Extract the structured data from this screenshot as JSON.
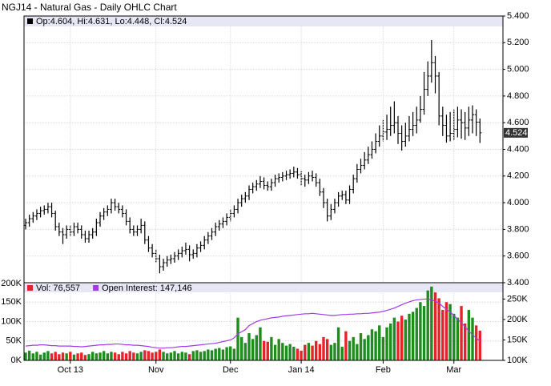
{
  "chart_data": [
    {
      "type": "ohlc",
      "title": "NGJ14 - Natural Gas - Daily OHLC Chart",
      "legend": "Op:4.604, Hi:4.631, Lo:4.448, Cl:4.524",
      "last_label": "4.524",
      "color": "#000000",
      "ylim": [
        3.4,
        5.4
      ],
      "yticks": [
        {
          "value": 3.4,
          "label": "3.400"
        },
        {
          "value": 3.6,
          "label": "3.600"
        },
        {
          "value": 3.8,
          "label": "3.800"
        },
        {
          "value": 4.0,
          "label": "4.000"
        },
        {
          "value": 4.2,
          "label": "4.200"
        },
        {
          "value": 4.4,
          "label": "4.400"
        },
        {
          "value": 4.6,
          "label": "4.600"
        },
        {
          "value": 4.8,
          "label": "4.800"
        },
        {
          "value": 5.0,
          "label": "5.000"
        },
        {
          "value": 5.2,
          "label": "5.200"
        },
        {
          "value": 5.4,
          "label": "5.400"
        }
      ],
      "grid": true,
      "open": [
        3.83,
        3.85,
        3.88,
        3.9,
        3.92,
        3.94,
        3.95,
        3.97,
        3.92,
        3.82,
        3.78,
        3.76,
        3.8,
        3.78,
        3.82,
        3.8,
        3.76,
        3.73,
        3.76,
        3.78,
        3.85,
        3.9,
        3.93,
        3.95,
        4.0,
        3.97,
        3.95,
        3.92,
        3.86,
        3.8,
        3.78,
        3.8,
        3.83,
        3.72,
        3.66,
        3.62,
        3.58,
        3.52,
        3.55,
        3.57,
        3.58,
        3.6,
        3.62,
        3.64,
        3.65,
        3.61,
        3.62,
        3.66,
        3.68,
        3.72,
        3.75,
        3.78,
        3.82,
        3.84,
        3.86,
        3.89,
        3.92,
        3.95,
        4.0,
        4.03,
        4.05,
        4.1,
        4.12,
        4.14,
        4.16,
        4.13,
        4.12,
        4.15,
        4.18,
        4.19,
        4.2,
        4.21,
        4.22,
        4.23,
        4.21,
        4.18,
        4.17,
        4.2,
        4.19,
        4.15,
        4.08,
        4.0,
        3.9,
        3.95,
        4.0,
        4.05,
        4.06,
        4.02,
        4.1,
        4.18,
        4.25,
        4.28,
        4.32,
        4.36,
        4.4,
        4.46,
        4.5,
        4.53,
        4.55,
        4.58,
        4.6,
        4.52,
        4.46,
        4.5,
        4.55,
        4.58,
        4.62,
        4.7,
        4.85,
        4.95,
        5.05,
        4.95,
        4.65,
        4.58,
        4.5,
        4.52,
        4.55,
        4.62,
        4.6,
        4.56,
        4.62,
        4.66,
        4.604
      ],
      "high": [
        3.88,
        3.91,
        3.93,
        3.95,
        3.97,
        3.98,
        4.0,
        4.0,
        3.94,
        3.85,
        3.81,
        3.83,
        3.83,
        3.85,
        3.85,
        3.83,
        3.79,
        3.79,
        3.81,
        3.88,
        3.93,
        3.96,
        3.98,
        4.03,
        4.03,
        4.0,
        3.98,
        3.95,
        3.89,
        3.83,
        3.83,
        3.88,
        3.86,
        3.75,
        3.69,
        3.65,
        3.61,
        3.58,
        3.6,
        3.61,
        3.63,
        3.65,
        3.67,
        3.7,
        3.68,
        3.65,
        3.69,
        3.71,
        3.75,
        3.78,
        3.81,
        3.85,
        3.87,
        3.89,
        3.92,
        3.95,
        3.98,
        4.03,
        4.06,
        4.08,
        4.13,
        4.15,
        4.17,
        4.2,
        4.19,
        4.16,
        4.18,
        4.21,
        4.22,
        4.23,
        4.24,
        4.25,
        4.27,
        4.26,
        4.24,
        4.21,
        4.23,
        4.24,
        4.22,
        4.18,
        4.11,
        4.03,
        3.99,
        4.03,
        4.08,
        4.09,
        4.09,
        4.13,
        4.21,
        4.29,
        4.33,
        4.38,
        4.42,
        4.46,
        4.52,
        4.58,
        4.62,
        4.66,
        4.72,
        4.76,
        4.65,
        4.58,
        4.6,
        4.65,
        4.68,
        4.72,
        4.8,
        4.98,
        5.06,
        5.22,
        5.1,
        4.98,
        4.72,
        4.66,
        4.68,
        4.7,
        4.72,
        4.7,
        4.68,
        4.72,
        4.73,
        4.7,
        4.631
      ],
      "low": [
        3.8,
        3.82,
        3.85,
        3.87,
        3.89,
        3.91,
        3.92,
        3.89,
        3.79,
        3.75,
        3.69,
        3.73,
        3.75,
        3.75,
        3.77,
        3.73,
        3.7,
        3.7,
        3.73,
        3.75,
        3.82,
        3.87,
        3.9,
        3.92,
        3.94,
        3.92,
        3.89,
        3.83,
        3.77,
        3.75,
        3.75,
        3.77,
        3.69,
        3.63,
        3.59,
        3.55,
        3.47,
        3.49,
        3.52,
        3.54,
        3.55,
        3.57,
        3.59,
        3.61,
        3.56,
        3.58,
        3.59,
        3.63,
        3.65,
        3.69,
        3.72,
        3.75,
        3.79,
        3.81,
        3.83,
        3.86,
        3.89,
        3.92,
        3.97,
        4.0,
        4.02,
        4.07,
        4.09,
        4.11,
        4.1,
        4.09,
        4.09,
        4.12,
        4.15,
        4.16,
        4.17,
        4.18,
        4.19,
        4.18,
        4.13,
        4.12,
        4.14,
        4.16,
        4.12,
        4.05,
        3.96,
        3.86,
        3.87,
        3.92,
        3.97,
        4.02,
        3.99,
        3.99,
        4.07,
        4.15,
        4.22,
        4.25,
        4.29,
        4.33,
        4.37,
        4.42,
        4.46,
        4.47,
        4.5,
        4.52,
        4.44,
        4.39,
        4.42,
        4.46,
        4.5,
        4.52,
        4.6,
        4.66,
        4.8,
        4.9,
        4.82,
        4.58,
        4.5,
        4.45,
        4.46,
        4.47,
        4.49,
        4.48,
        4.47,
        4.5,
        4.52,
        4.5,
        4.448
      ],
      "close": [
        3.85,
        3.88,
        3.9,
        3.92,
        3.94,
        3.95,
        3.97,
        3.92,
        3.82,
        3.78,
        3.76,
        3.8,
        3.78,
        3.82,
        3.8,
        3.76,
        3.73,
        3.76,
        3.78,
        3.85,
        3.9,
        3.93,
        3.95,
        4.0,
        3.97,
        3.95,
        3.92,
        3.86,
        3.8,
        3.78,
        3.8,
        3.83,
        3.72,
        3.66,
        3.62,
        3.58,
        3.52,
        3.55,
        3.57,
        3.58,
        3.6,
        3.62,
        3.64,
        3.65,
        3.61,
        3.62,
        3.66,
        3.68,
        3.72,
        3.75,
        3.78,
        3.82,
        3.84,
        3.86,
        3.89,
        3.92,
        3.95,
        4.0,
        4.03,
        4.05,
        4.1,
        4.12,
        4.14,
        4.16,
        4.13,
        4.12,
        4.15,
        4.18,
        4.19,
        4.2,
        4.21,
        4.22,
        4.23,
        4.21,
        4.18,
        4.17,
        4.2,
        4.19,
        4.15,
        4.08,
        4.0,
        3.9,
        3.95,
        4.0,
        4.05,
        4.06,
        4.02,
        4.1,
        4.18,
        4.25,
        4.28,
        4.32,
        4.36,
        4.4,
        4.46,
        4.5,
        4.53,
        4.55,
        4.58,
        4.6,
        4.52,
        4.46,
        4.5,
        4.55,
        4.58,
        4.62,
        4.7,
        4.85,
        4.95,
        5.05,
        4.95,
        4.65,
        4.58,
        4.5,
        4.52,
        4.55,
        4.62,
        4.6,
        4.56,
        4.62,
        4.66,
        4.604,
        4.524
      ]
    },
    {
      "type": "bar",
      "up_color": "#1e8c1e",
      "down_color": "#e8222a",
      "categories": [
        null,
        null,
        null,
        null,
        null,
        null,
        null,
        null,
        null,
        null,
        null,
        null,
        "Oct 13",
        null,
        null,
        null,
        null,
        null,
        null,
        null,
        null,
        null,
        null,
        null,
        null,
        null,
        null,
        null,
        null,
        null,
        null,
        null,
        null,
        null,
        null,
        "Nov",
        null,
        null,
        null,
        null,
        null,
        null,
        null,
        null,
        null,
        null,
        null,
        null,
        null,
        null,
        null,
        null,
        null,
        null,
        null,
        "Dec",
        null,
        null,
        null,
        null,
        null,
        null,
        null,
        null,
        null,
        null,
        null,
        null,
        null,
        null,
        null,
        null,
        null,
        null,
        "Jan 14",
        null,
        null,
        null,
        null,
        null,
        null,
        null,
        null,
        null,
        null,
        null,
        null,
        null,
        null,
        null,
        null,
        null,
        null,
        null,
        null,
        null,
        "Feb",
        null,
        null,
        null,
        null,
        null,
        null,
        null,
        null,
        null,
        null,
        null,
        null,
        null,
        null,
        null,
        null,
        null,
        null,
        "Mar",
        null,
        null,
        null,
        null,
        null,
        null,
        null
      ],
      "ylim": [
        0,
        200000
      ],
      "yticks": [
        {
          "value": 0,
          "label": "0K"
        },
        {
          "value": 50000,
          "label": "50K"
        },
        {
          "value": 100000,
          "label": "100K"
        },
        {
          "value": 150000,
          "label": "150K"
        },
        {
          "value": 200000,
          "label": "200K"
        }
      ],
      "y2lim": [
        100000,
        290000
      ],
      "y2ticks": [
        {
          "value": 100000,
          "label": "100K"
        },
        {
          "value": 150000,
          "label": "150K"
        },
        {
          "value": 200000,
          "label": "200K"
        },
        {
          "value": 250000,
          "label": "250K"
        }
      ],
      "grid": true,
      "series": [
        {
          "name": "Vol: 76,557",
          "color": "#e8222a",
          "values": [
            20000,
            25000,
            18000,
            22000,
            15000,
            20000,
            24000,
            18000,
            22000,
            16000,
            20000,
            18000,
            22000,
            15000,
            18000,
            20000,
            14000,
            16000,
            22000,
            18000,
            20000,
            24000,
            18000,
            22000,
            20000,
            16000,
            22000,
            18000,
            24000,
            20000,
            18000,
            22000,
            26000,
            24000,
            20000,
            22000,
            28000,
            22000,
            18000,
            20000,
            24000,
            18000,
            22000,
            20000,
            16000,
            24000,
            26000,
            22000,
            24000,
            28000,
            26000,
            30000,
            32000,
            28000,
            34000,
            36000,
            30000,
            110000,
            60000,
            45000,
            70000,
            55000,
            65000,
            85000,
            50000,
            48000,
            60000,
            40000,
            55000,
            45000,
            38000,
            42000,
            35000,
            30000,
            25000,
            40000,
            45000,
            38000,
            50000,
            42000,
            60000,
            55000,
            40000,
            45000,
            85000,
            35000,
            75000,
            50000,
            60000,
            42000,
            70000,
            55000,
            65000,
            80000,
            75000,
            90000,
            60000,
            85000,
            95000,
            110000,
            100000,
            115000,
            105000,
            120000,
            125000,
            135000,
            150000,
            140000,
            180000,
            190000,
            175000,
            160000,
            130000,
            150000,
            145000,
            120000,
            110000,
            140000,
            95000,
            130000,
            110000,
            90000,
            76557
          ]
        },
        {
          "name": "Open Interest: 147,146",
          "color": "#a23ce6",
          "axis": "y2",
          "values": [
            135000,
            136000,
            137000,
            137000,
            138000,
            138000,
            137000,
            136000,
            136000,
            135000,
            135000,
            135000,
            135000,
            134000,
            134000,
            133000,
            134000,
            135000,
            136000,
            137000,
            138000,
            138000,
            139000,
            139000,
            140000,
            140000,
            139000,
            138000,
            138000,
            137000,
            137000,
            136000,
            135000,
            134000,
            132000,
            131000,
            130000,
            130000,
            131000,
            131000,
            132000,
            133000,
            134000,
            134000,
            135000,
            136000,
            137000,
            138000,
            139000,
            140000,
            141000,
            142000,
            144000,
            146000,
            148000,
            150000,
            155000,
            165000,
            170000,
            175000,
            185000,
            190000,
            195000,
            198000,
            200000,
            202000,
            204000,
            205000,
            206000,
            208000,
            209000,
            210000,
            211000,
            212000,
            213000,
            214000,
            214000,
            215000,
            214000,
            213000,
            212000,
            211000,
            210000,
            210000,
            211000,
            212000,
            212000,
            213000,
            213000,
            214000,
            214000,
            215000,
            215000,
            216000,
            217000,
            218000,
            220000,
            222000,
            225000,
            228000,
            232000,
            236000,
            240000,
            243000,
            246000,
            248000,
            249000,
            250000,
            250000,
            248000,
            245000,
            240000,
            232000,
            225000,
            218000,
            210000,
            200000,
            192000,
            182000,
            172000,
            162000,
            155000,
            147146
          ]
        }
      ]
    }
  ]
}
